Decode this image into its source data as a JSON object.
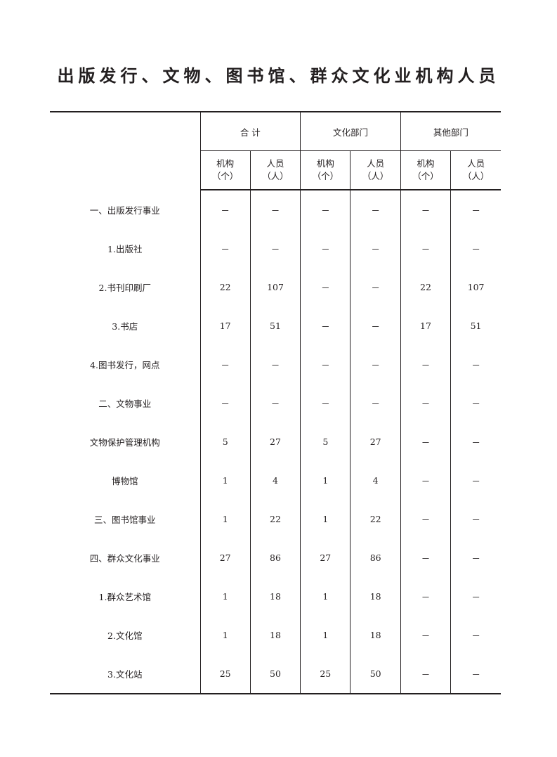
{
  "title": "出版发行、文物、图书馆、群众文化业机构人员",
  "header": {
    "groups": [
      "合 计",
      "文化部门",
      "其他部门"
    ],
    "sub": [
      {
        "line1": "机构",
        "line2": "（个）"
      },
      {
        "line1": "人员",
        "line2": "（人）"
      }
    ]
  },
  "rows": [
    {
      "label": "一、出版发行事业",
      "values": [
        "－",
        "－",
        "－",
        "－",
        "－",
        "－"
      ]
    },
    {
      "label": "1.出版社",
      "values": [
        "－",
        "－",
        "－",
        "－",
        "－",
        "－"
      ]
    },
    {
      "label": "2.书刊印刷厂",
      "values": [
        "22",
        "107",
        "－",
        "－",
        "22",
        "107"
      ]
    },
    {
      "label": "3.书店",
      "values": [
        "17",
        "51",
        "－",
        "－",
        "17",
        "51"
      ]
    },
    {
      "label": "4.图书发行，网点",
      "values": [
        "－",
        "－",
        "－",
        "－",
        "－",
        "－"
      ]
    },
    {
      "label": "二、文物事业",
      "values": [
        "－",
        "－",
        "－",
        "－",
        "－",
        "－"
      ]
    },
    {
      "label": "文物保护管理机构",
      "values": [
        "5",
        "27",
        "5",
        "27",
        "－",
        "－"
      ]
    },
    {
      "label": "博物馆",
      "values": [
        "1",
        "4",
        "1",
        "4",
        "－",
        "－"
      ]
    },
    {
      "label": "三、图书馆事业",
      "values": [
        "1",
        "22",
        "1",
        "22",
        "－",
        "－"
      ]
    },
    {
      "label": "四、群众文化事业",
      "values": [
        "27",
        "86",
        "27",
        "86",
        "－",
        "－"
      ]
    },
    {
      "label": "1.群众艺术馆",
      "values": [
        "1",
        "18",
        "1",
        "18",
        "－",
        "－"
      ]
    },
    {
      "label": "2.文化馆",
      "values": [
        "1",
        "18",
        "1",
        "18",
        "－",
        "－"
      ]
    },
    {
      "label": "3.文化站",
      "values": [
        "25",
        "50",
        "25",
        "50",
        "－",
        "－"
      ]
    }
  ]
}
